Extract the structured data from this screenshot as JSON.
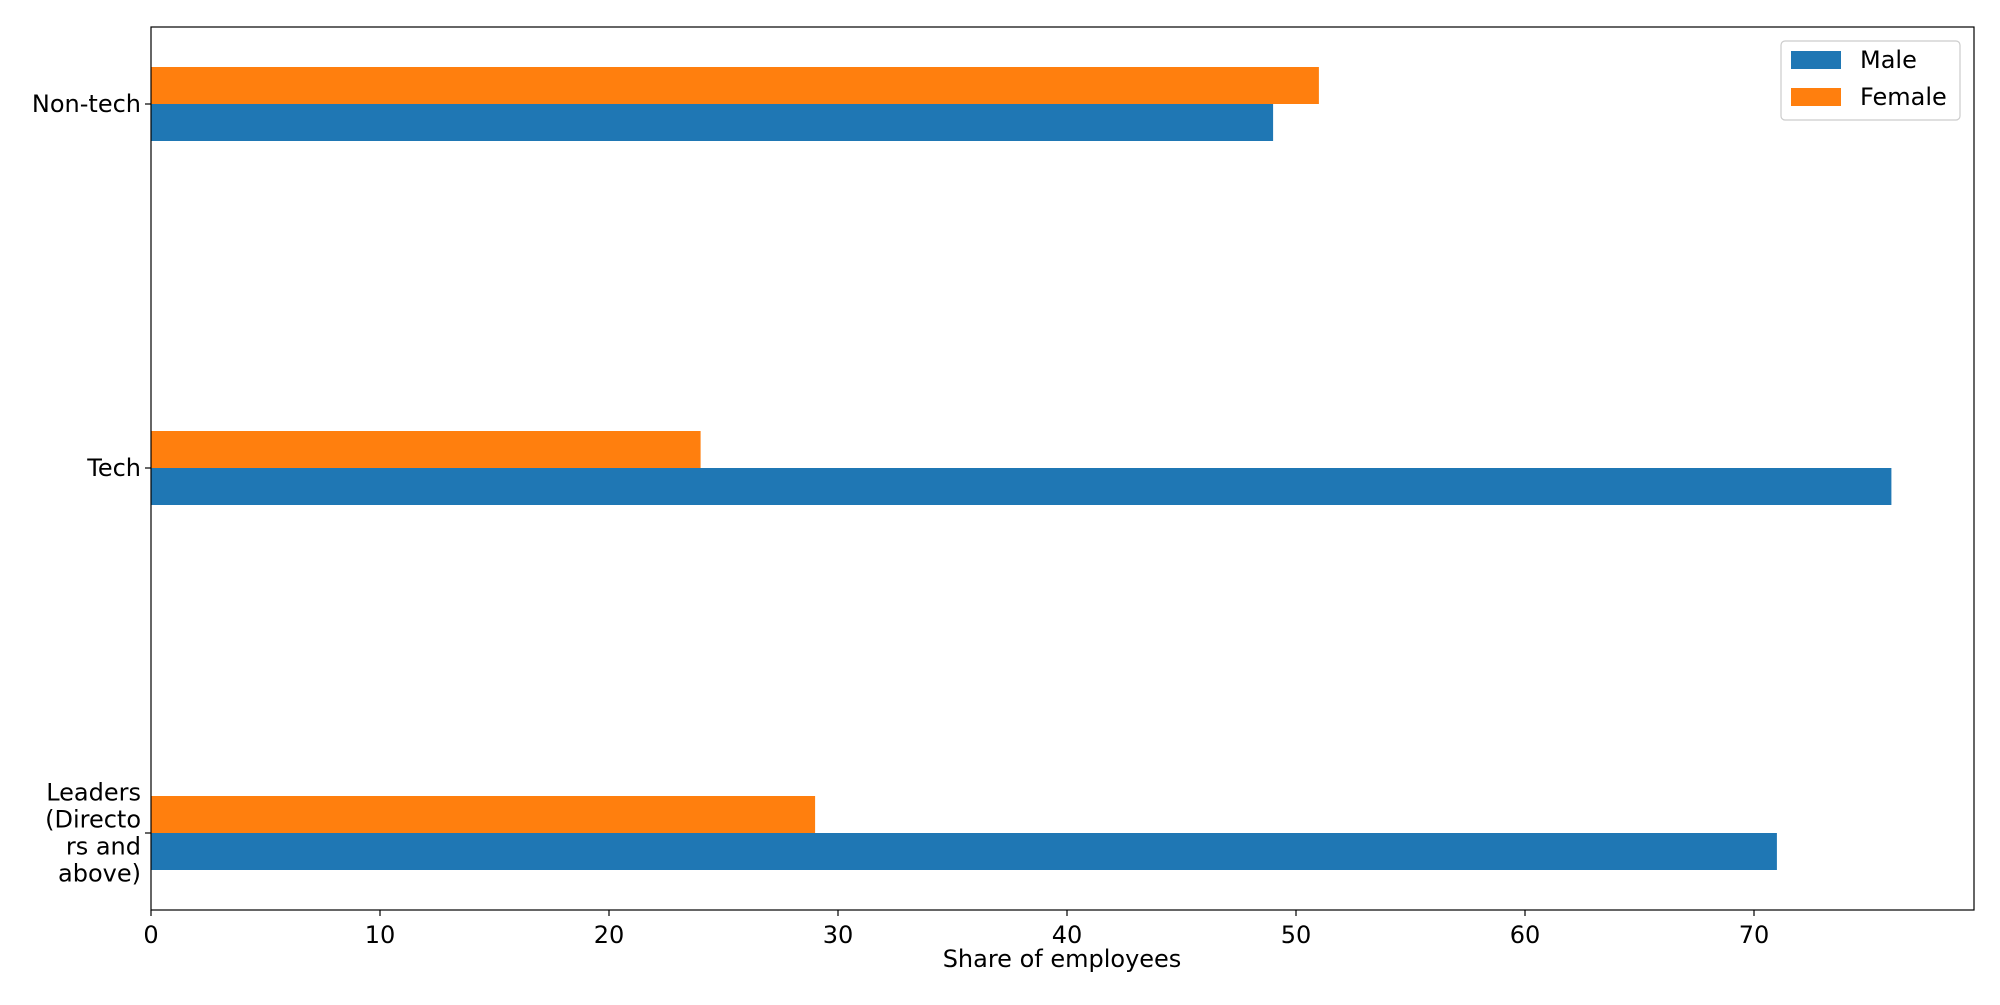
{
  "chart_data": {
    "type": "bar",
    "orientation": "horizontal",
    "categories": [
      "Leaders\n(Directo\nrs and\nabove)",
      "Tech",
      "Non-tech"
    ],
    "series": [
      {
        "name": "Male",
        "values": [
          71,
          76,
          49
        ],
        "color": "#1f77b4"
      },
      {
        "name": "Female",
        "values": [
          29,
          24,
          51
        ],
        "color": "#ff7f0e"
      }
    ],
    "xlabel": "Share of employees",
    "ylabel": "",
    "xlim": [
      0,
      80
    ],
    "xticks": [
      0,
      10,
      20,
      30,
      40,
      50,
      60,
      70
    ],
    "grid": false,
    "legend": "top-right"
  }
}
